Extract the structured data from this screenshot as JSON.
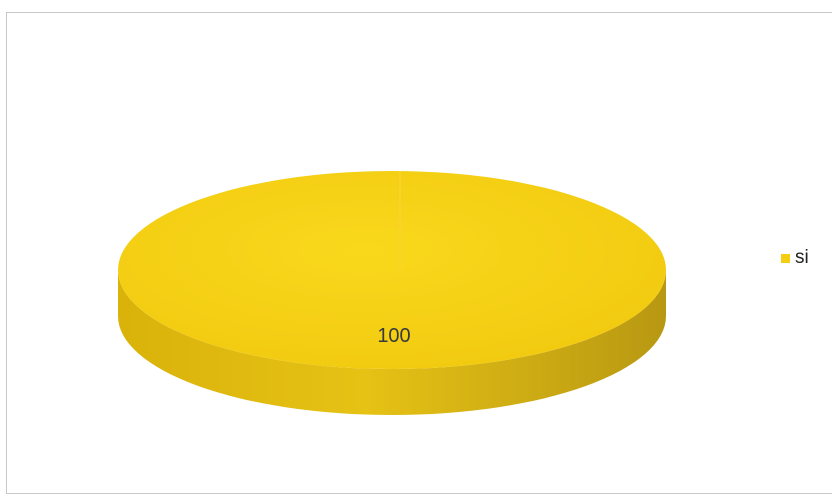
{
  "chart_data": {
    "type": "pie",
    "title": "",
    "style": "3d",
    "legend_position": "right",
    "series": [
      {
        "slices": [
          {
            "label": "si",
            "value": 100,
            "color": "#F5CE12"
          }
        ]
      }
    ],
    "data_labels": [
      "100"
    ]
  }
}
